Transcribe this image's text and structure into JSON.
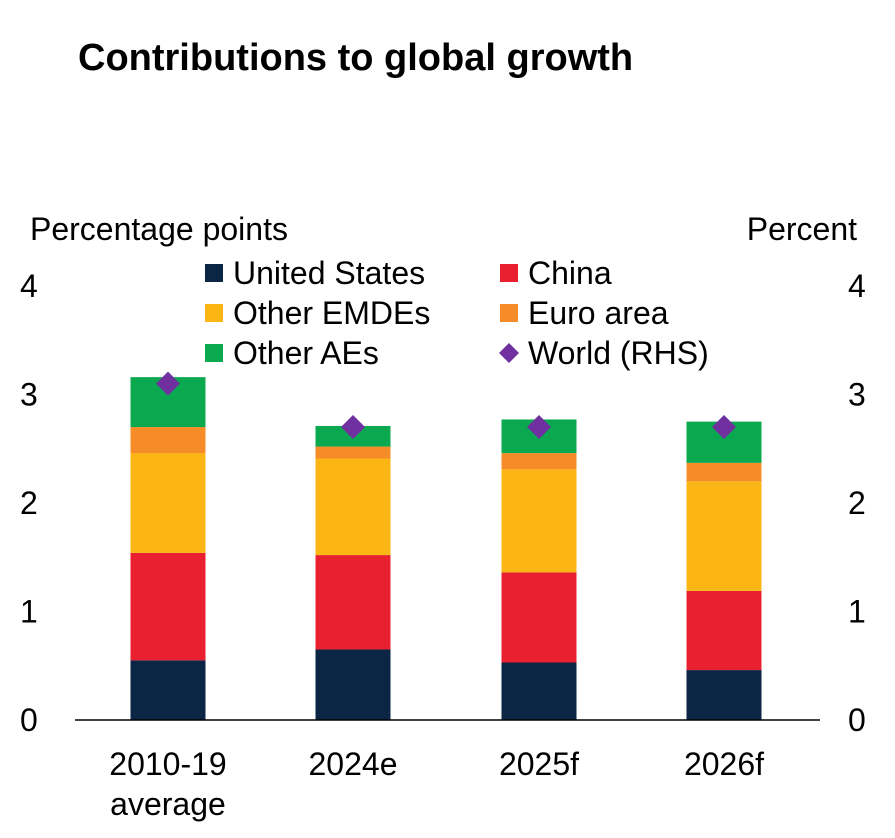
{
  "chart_data": {
    "type": "bar",
    "stacked": true,
    "title": "Contributions to global growth",
    "ylabel_left": "Percentage points",
    "ylabel_right": "Percent",
    "ylim": [
      0,
      4
    ],
    "yticks": [
      "0",
      "1",
      "2",
      "3",
      "4"
    ],
    "categories": [
      [
        "2010-19",
        "average"
      ],
      [
        "2024e"
      ],
      [
        "2025f"
      ],
      [
        "2026f"
      ]
    ],
    "series": [
      {
        "name": "United States",
        "color": "#0b2545",
        "values": [
          0.55,
          0.65,
          0.53,
          0.46
        ]
      },
      {
        "name": "China",
        "color": "#e8202f",
        "values": [
          0.99,
          0.87,
          0.83,
          0.73
        ]
      },
      {
        "name": "Other EMDEs",
        "color": "#fbb515",
        "values": [
          0.92,
          0.89,
          0.95,
          1.01
        ]
      },
      {
        "name": "Euro area",
        "color": "#f58c27",
        "values": [
          0.24,
          0.11,
          0.15,
          0.17
        ]
      },
      {
        "name": "Other AEs",
        "color": "#0aa94f",
        "values": [
          0.46,
          0.19,
          0.31,
          0.38
        ]
      }
    ],
    "world": {
      "name": "World (RHS)",
      "color": "#7030a0",
      "values": [
        3.1,
        2.7,
        2.7,
        2.7
      ]
    },
    "legend": [
      {
        "name": "United States",
        "marker": "square",
        "color": "#0b2545"
      },
      {
        "name": "China",
        "marker": "square",
        "color": "#e8202f"
      },
      {
        "name": "Other EMDEs",
        "marker": "square",
        "color": "#fbb515"
      },
      {
        "name": "Euro area",
        "marker": "square",
        "color": "#f58c27"
      },
      {
        "name": "Other AEs",
        "marker": "square",
        "color": "#0aa94f"
      },
      {
        "name": "World (RHS)",
        "marker": "diamond",
        "color": "#7030a0"
      }
    ]
  }
}
